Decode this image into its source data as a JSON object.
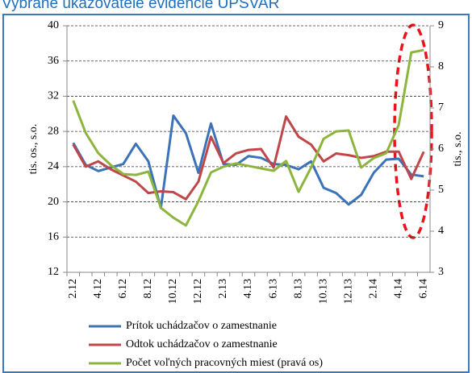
{
  "chart_data": {
    "type": "line",
    "title": "Vybrané ukazovatele evidencie ÚPSVAR",
    "y_label": "tis. os., s.o.",
    "y2_label": "tis., s.o.",
    "categories": [
      "2.12",
      null,
      "4.12",
      null,
      "6.12",
      null,
      "8.12",
      null,
      "10.12",
      null,
      "12.12",
      null,
      "2.13",
      null,
      "4.13",
      null,
      "6.13",
      null,
      "8.13",
      null,
      "10.13",
      null,
      "12.13",
      null,
      "2.14",
      null,
      "4.14",
      null,
      "6.14"
    ],
    "ylim": [
      12,
      40
    ],
    "yticks": [
      12,
      16,
      20,
      24,
      28,
      32,
      36,
      40
    ],
    "y2lim": [
      3,
      9
    ],
    "y2ticks": [
      3,
      4,
      5,
      6,
      7,
      8,
      9
    ],
    "grid": true,
    "series": [
      {
        "name": "Prítok uchádzačov o zamestnanie",
        "color": "#3c72b6",
        "values": [
          26.7,
          24.2,
          23.5,
          23.9,
          24.3,
          26.6,
          24.6,
          19.3,
          29.8,
          27.8,
          23.3,
          28.9,
          24.3,
          24.2,
          25.2,
          25.0,
          24.3,
          24.2,
          23.7,
          24.6,
          21.6,
          21.0,
          19.7,
          20.8,
          23.3,
          24.8,
          24.9,
          23.1,
          22.9
        ]
      },
      {
        "name": "Odtok uchádzačov o zamestnanie",
        "color": "#c0464a",
        "values": [
          26.5,
          24.0,
          24.6,
          23.7,
          23.0,
          22.3,
          21.0,
          21.2,
          21.1,
          20.3,
          22.3,
          27.4,
          24.4,
          25.5,
          25.9,
          26.0,
          23.9,
          29.7,
          27.4,
          26.5,
          24.6,
          25.5,
          25.3,
          25.0,
          25.2,
          25.7,
          25.7,
          22.6,
          25.7
        ]
      },
      {
        "name": "Počet voľných pracovných miest (pravá os)",
        "color": "#8db53e",
        "axis": "y2",
        "values": [
          7.18,
          6.39,
          5.9,
          5.61,
          5.39,
          5.37,
          5.45,
          4.57,
          4.33,
          4.14,
          4.73,
          5.43,
          5.57,
          5.65,
          5.59,
          5.53,
          5.47,
          5.71,
          4.96,
          5.55,
          6.25,
          6.43,
          6.45,
          5.55,
          5.78,
          5.9,
          6.59,
          8.35,
          8.41
        ]
      }
    ]
  }
}
